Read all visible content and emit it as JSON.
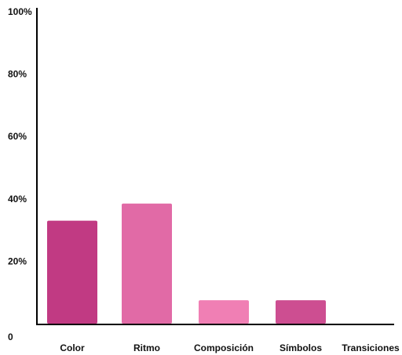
{
  "chart_data": {
    "type": "bar",
    "categories": [
      "Color",
      "Ritmo",
      "Composición",
      "Símbolos",
      "Transiciones"
    ],
    "values": [
      33,
      38.5,
      7.5,
      7.5,
      0
    ],
    "colors": [
      "#c13a83",
      "#e16aa6",
      "#f07fb4",
      "#cd4e91",
      "#f07fb4"
    ],
    "y_ticks": [
      {
        "value": 0,
        "label": "0"
      },
      {
        "value": 20,
        "label": "20%"
      },
      {
        "value": 40,
        "label": "40%"
      },
      {
        "value": 60,
        "label": "60%"
      },
      {
        "value": 80,
        "label": "80%"
      },
      {
        "value": 100,
        "label": "100%"
      }
    ],
    "ylim": [
      0,
      100
    ],
    "grid": false,
    "legend": "none",
    "axis_color": "#000000"
  }
}
